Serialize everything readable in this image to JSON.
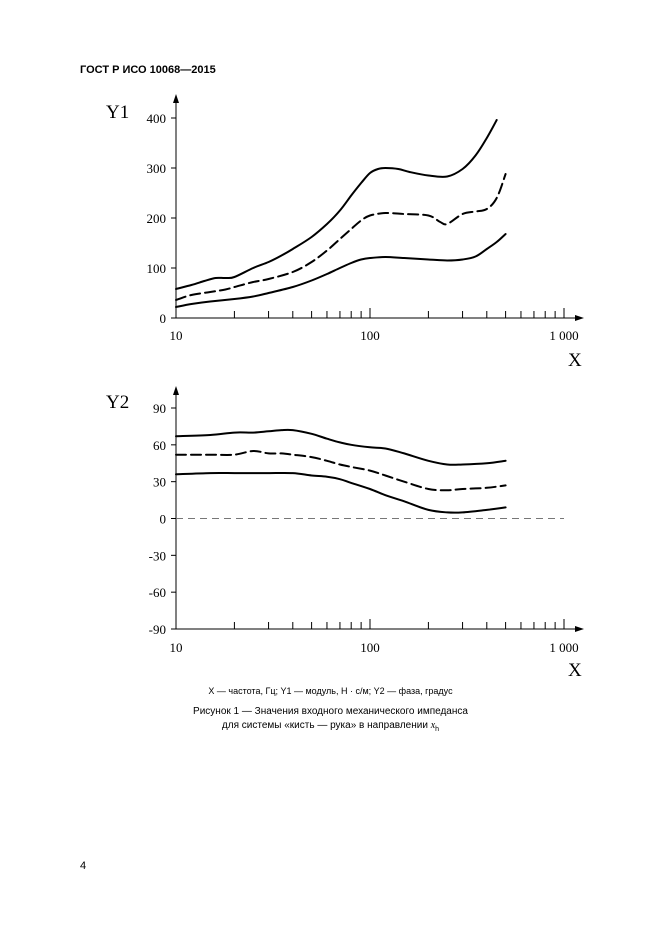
{
  "header": {
    "standard": "ГОСТ Р ИСО 10068—2015"
  },
  "legend_text": "X — частота, Гц; Y1 — модуль, Н · с/м; Y2 — фаза, градус",
  "caption": {
    "line1": "Рисунок 1 — Значения входного механического импеданса",
    "line2_prefix": "для системы «кисть — рука» в направлении ",
    "line2_symbol": "x",
    "line2_subscript": "h"
  },
  "page_number": "4",
  "chart_data": [
    {
      "type": "line",
      "ylabel": "Y1",
      "xlabel": "X",
      "xscale": "log",
      "xlim": [
        10,
        1000
      ],
      "ylim": [
        0,
        400
      ],
      "xticklabels": [
        "10",
        "100",
        "1 000"
      ],
      "yticks": [
        0,
        100,
        200,
        300,
        400
      ],
      "series": [
        {
          "style": "solid",
          "x": [
            10,
            12,
            14,
            16,
            18,
            20,
            25,
            30,
            35,
            40,
            50,
            60,
            70,
            80,
            90,
            100,
            110,
            120,
            140,
            160,
            200,
            250,
            300,
            350,
            400,
            450
          ],
          "y": [
            58,
            66,
            74,
            80,
            80,
            82,
            100,
            112,
            125,
            138,
            162,
            188,
            215,
            245,
            270,
            290,
            298,
            300,
            298,
            292,
            285,
            283,
            298,
            325,
            360,
            396
          ]
        },
        {
          "style": "dashed",
          "x": [
            10,
            12,
            15,
            18,
            20,
            25,
            30,
            40,
            50,
            60,
            70,
            80,
            90,
            100,
            120,
            150,
            200,
            230,
            250,
            300,
            350,
            400,
            450,
            500
          ],
          "y": [
            36,
            46,
            52,
            57,
            62,
            72,
            78,
            92,
            112,
            135,
            158,
            178,
            195,
            205,
            210,
            208,
            205,
            192,
            188,
            208,
            213,
            218,
            240,
            288
          ]
        },
        {
          "style": "solid",
          "x": [
            10,
            12,
            15,
            20,
            25,
            30,
            40,
            50,
            60,
            70,
            80,
            90,
            100,
            120,
            150,
            200,
            250,
            300,
            350,
            400,
            450,
            500
          ],
          "y": [
            22,
            28,
            33,
            38,
            43,
            50,
            62,
            75,
            88,
            100,
            110,
            117,
            120,
            122,
            120,
            117,
            115,
            117,
            123,
            138,
            152,
            168
          ]
        }
      ]
    },
    {
      "type": "line",
      "ylabel": "Y2",
      "xlabel": "X",
      "xscale": "log",
      "xlim": [
        10,
        1000
      ],
      "ylim": [
        -90,
        90
      ],
      "xticklabels": [
        "10",
        "100",
        "1 000"
      ],
      "yticks": [
        -90,
        -60,
        -30,
        0,
        30,
        60,
        90
      ],
      "yticklabels": [
        "-90",
        "-60",
        "-30",
        "0",
        "30",
        "60",
        "90"
      ],
      "reference_line": {
        "y": 0,
        "style": "dashed"
      },
      "series": [
        {
          "style": "solid",
          "x": [
            10,
            15,
            20,
            25,
            30,
            35,
            40,
            50,
            60,
            70,
            80,
            100,
            120,
            150,
            200,
            250,
            300,
            400,
            500
          ],
          "y": [
            67,
            68,
            70,
            70,
            71,
            72,
            72,
            69,
            65,
            62,
            60,
            58,
            57,
            53,
            47,
            44,
            44,
            45,
            47
          ]
        },
        {
          "style": "dashed",
          "x": [
            10,
            15,
            20,
            25,
            30,
            35,
            40,
            50,
            60,
            70,
            80,
            100,
            120,
            150,
            200,
            250,
            300,
            400,
            500
          ],
          "y": [
            52,
            52,
            52,
            55,
            53,
            53,
            52,
            50,
            47,
            44,
            42,
            39,
            35,
            30,
            24,
            23,
            24,
            25,
            27
          ]
        },
        {
          "style": "solid",
          "x": [
            10,
            15,
            20,
            25,
            30,
            40,
            50,
            60,
            70,
            80,
            100,
            120,
            150,
            200,
            250,
            300,
            400,
            500
          ],
          "y": [
            36,
            37,
            37,
            37,
            37,
            37,
            35,
            34,
            32,
            29,
            24,
            19,
            14,
            7,
            5,
            5,
            7,
            9
          ]
        }
      ]
    }
  ]
}
